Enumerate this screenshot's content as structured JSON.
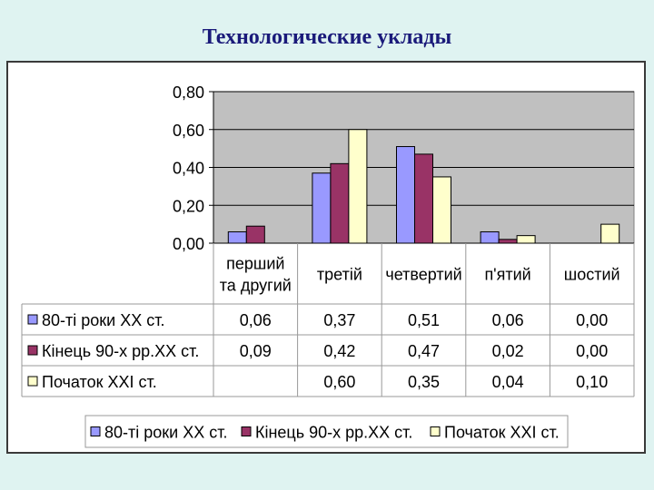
{
  "title": "Технологические уклады",
  "chart_data": {
    "type": "bar",
    "categories": [
      [
        "перший",
        "та другий"
      ],
      [
        "третій"
      ],
      [
        "четвертий"
      ],
      [
        "п'ятий"
      ],
      [
        "шостий"
      ]
    ],
    "yticks": [
      "0,80",
      "0,60",
      "0,40",
      "0,20",
      "0,00"
    ],
    "ylim": [
      0,
      0.8
    ],
    "grid": true,
    "legend_position": "bottom",
    "series": [
      {
        "name": "80-ті роки ХХ ст.",
        "color": "#9999ff",
        "values": [
          0.06,
          0.37,
          0.51,
          0.06,
          0.0
        ],
        "labels": [
          "0,06",
          "0,37",
          "0,51",
          "0,06",
          "0,00"
        ]
      },
      {
        "name": "Кінець 90-х рр.ХХ ст.",
        "color": "#993366",
        "values": [
          0.09,
          0.42,
          0.47,
          0.02,
          0.0
        ],
        "labels": [
          "0,09",
          "0,42",
          "0,47",
          "0,02",
          "0,00"
        ]
      },
      {
        "name": "Початок ХХІ ст.",
        "color": "#ffffcc",
        "values": [
          null,
          0.6,
          0.35,
          0.04,
          0.1
        ],
        "labels": [
          "",
          "0,60",
          "0,35",
          "0,04",
          "0,10"
        ]
      }
    ]
  }
}
